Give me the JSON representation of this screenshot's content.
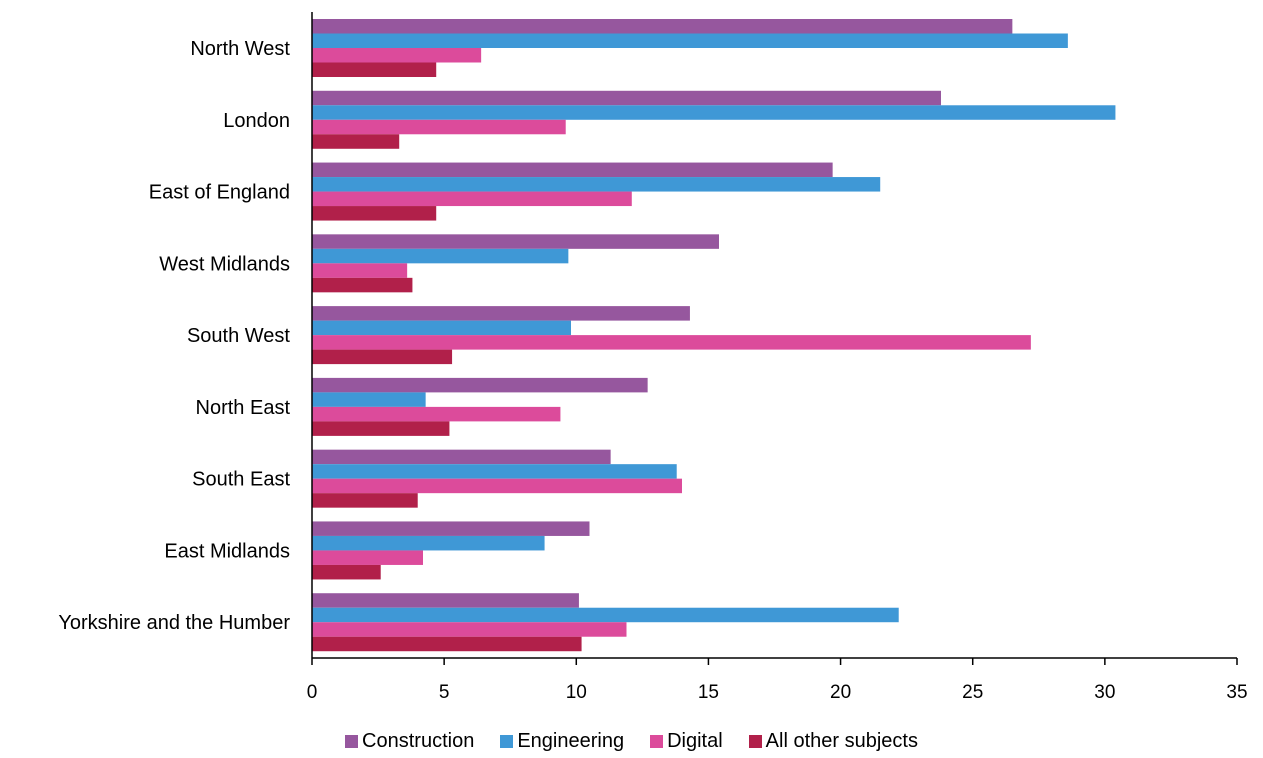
{
  "chart_data": {
    "type": "bar",
    "orientation": "horizontal",
    "categories": [
      "North West",
      "London",
      "East of England",
      "West Midlands",
      "South West",
      "North East",
      "South East",
      "East Midlands",
      "Yorkshire and the Humber"
    ],
    "series": [
      {
        "name": "Construction",
        "color": "#96579e",
        "values": [
          26.5,
          23.8,
          19.7,
          15.4,
          14.3,
          12.7,
          11.3,
          10.5,
          10.1
        ]
      },
      {
        "name": "Engineering",
        "color": "#3f98d6",
        "values": [
          28.6,
          30.4,
          21.5,
          9.7,
          9.8,
          4.3,
          13.8,
          8.8,
          22.2
        ]
      },
      {
        "name": "Digital",
        "color": "#dc4b9b",
        "values": [
          6.4,
          9.6,
          12.1,
          3.6,
          27.2,
          9.4,
          14.0,
          4.2,
          11.9
        ]
      },
      {
        "name": "All other subjects",
        "color": "#b1204a",
        "values": [
          4.7,
          3.3,
          4.7,
          3.8,
          5.3,
          5.2,
          4.0,
          2.6,
          10.2
        ]
      }
    ],
    "xlim": [
      0,
      35
    ],
    "xticks": [
      0,
      5,
      10,
      15,
      20,
      25,
      30,
      35
    ],
    "legend_position": "bottom",
    "grid": false
  }
}
